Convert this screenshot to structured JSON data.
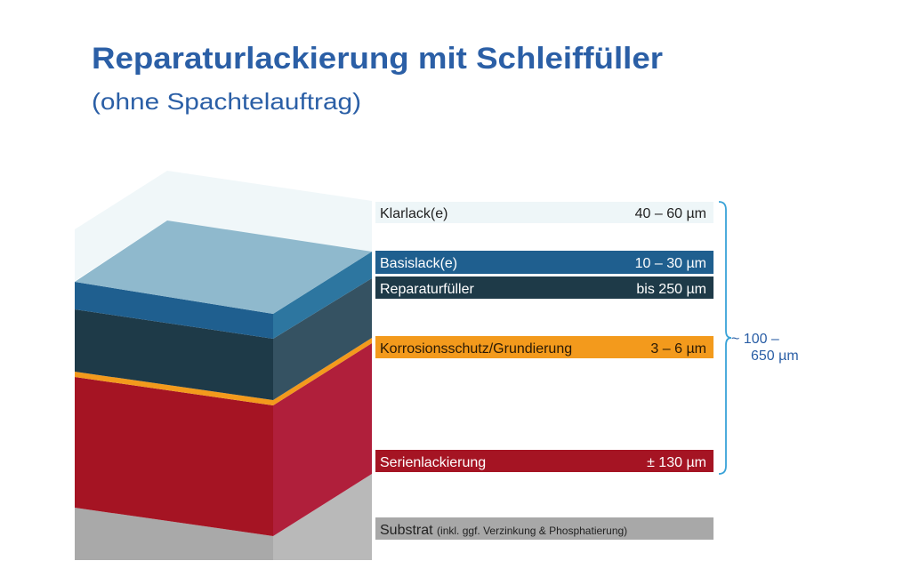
{
  "header": {
    "title": "Reparaturlackierung mit Schleiffüller",
    "subtitle": "(ohne Spachtelauftrag)"
  },
  "colors": {
    "title": "#2b5fa6",
    "clear": "#eef6f8",
    "base": "#1f5f8f",
    "filler": "#1e3a48",
    "primer": "#f39a1c",
    "oem": "#a51423",
    "substrate": "#a8a8a8",
    "brace": "#3aa3d8"
  },
  "layers": [
    {
      "name": "Klarlack(e)",
      "thickness": "40 – 60 µm"
    },
    {
      "name": "Basislack(e)",
      "thickness": "10 – 30 µm"
    },
    {
      "name": "Reparaturfüller",
      "thickness": "bis 250 µm"
    },
    {
      "name": "Korrosionsschutz/Grundierung",
      "thickness": "3 – 6 µm"
    },
    {
      "name": "Serienlackierung",
      "thickness": "± 130 µm"
    },
    {
      "name": "Substrat",
      "note": "(inkl. ggf. Verzinkung & Phosphatierung)"
    }
  ],
  "total": {
    "line1": "~  100 –",
    "line2": "650 µm"
  }
}
